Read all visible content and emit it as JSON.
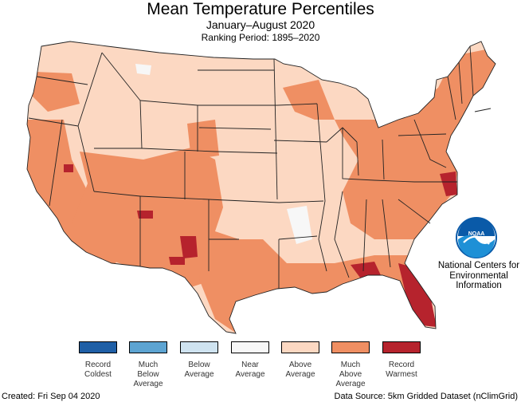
{
  "title": "Mean Temperature Percentiles",
  "subtitle": "January–August 2020",
  "ranking_period": "Ranking Period: 1895–2020",
  "legend": [
    {
      "label": "Record\nColdest",
      "color": "#1f5fa6"
    },
    {
      "label": "Much\nBelow\nAverage",
      "color": "#5da4d2"
    },
    {
      "label": "Below\nAverage",
      "color": "#cfe3f0"
    },
    {
      "label": "Near\nAverage",
      "color": "#f7f7f7"
    },
    {
      "label": "Above\nAverage",
      "color": "#fcd8c2"
    },
    {
      "label": "Much\nAbove\nAverage",
      "color": "#ef8f63"
    },
    {
      "label": "Record\nWarmest",
      "color": "#b6232d"
    }
  ],
  "logo": {
    "name": "NOAA",
    "text": "NOAA"
  },
  "logo_caption": "National Centers for\nEnvironmental\nInformation",
  "footer": {
    "created": "Created: Fri Sep 04 2020",
    "source": "Data Source: 5km Gridded Dataset (nClimGrid)"
  },
  "colors": {
    "above": "#fcd8c2",
    "much_above": "#ef8f63",
    "record": "#b6232d",
    "near": "#f7f7f7",
    "border": "#222222"
  }
}
